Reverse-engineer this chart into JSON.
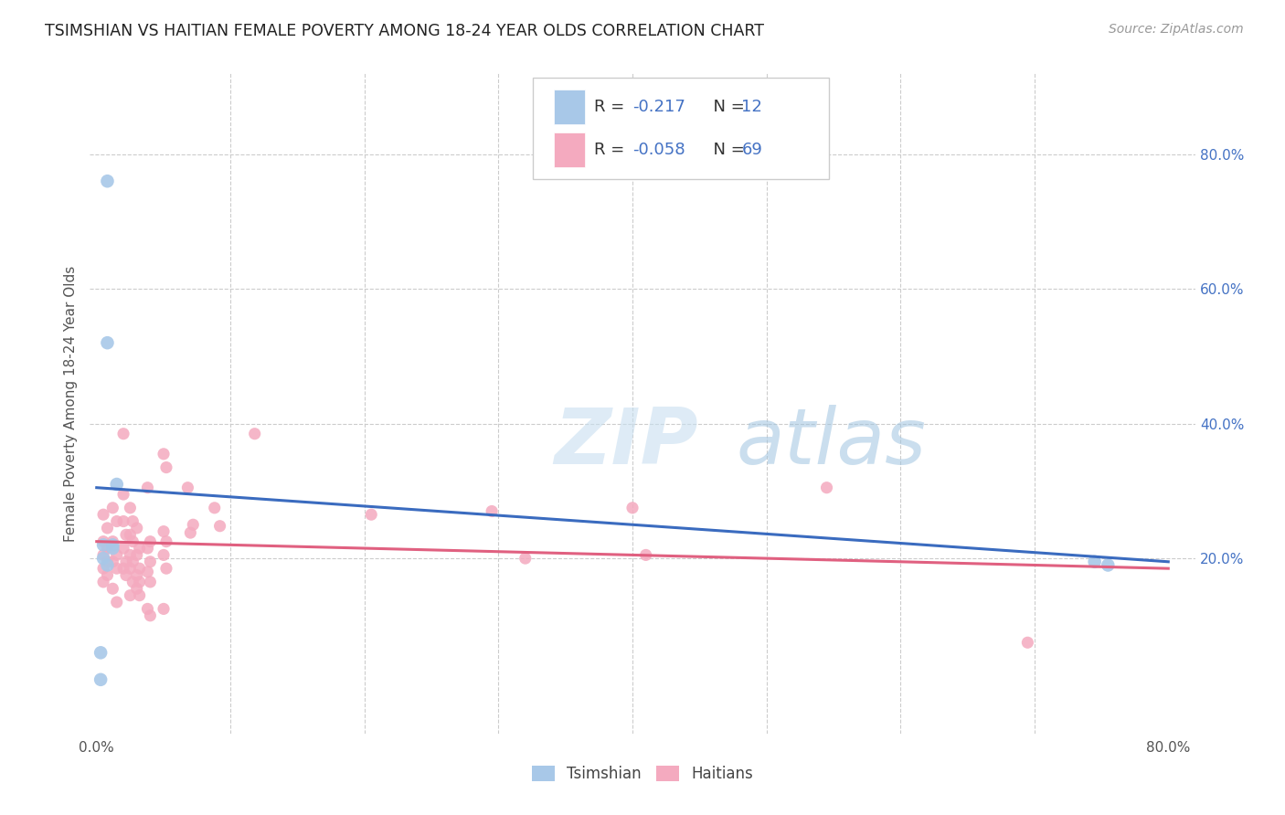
{
  "title": "TSIMSHIAN VS HAITIAN FEMALE POVERTY AMONG 18-24 YEAR OLDS CORRELATION CHART",
  "source": "Source: ZipAtlas.com",
  "ylabel": "Female Poverty Among 18-24 Year Olds",
  "right_yticks": [
    "80.0%",
    "60.0%",
    "40.0%",
    "20.0%"
  ],
  "right_ytick_vals": [
    0.8,
    0.6,
    0.4,
    0.2
  ],
  "xlim": [
    -0.005,
    0.82
  ],
  "ylim": [
    -0.06,
    0.92
  ],
  "tsimshian_R": -0.217,
  "tsimshian_N": 12,
  "haitian_R": -0.058,
  "haitian_N": 69,
  "tsimshian_color": "#a8c8e8",
  "haitian_color": "#f4aabf",
  "tsimshian_line_color": "#3a6bbf",
  "haitian_line_color": "#e06080",
  "grid_color": "#cccccc",
  "ts_line_y0": 0.305,
  "ts_line_y1": 0.195,
  "ha_line_y0": 0.225,
  "ha_line_y1": 0.185,
  "tsimshian_scatter": [
    [
      0.008,
      0.76
    ],
    [
      0.008,
      0.52
    ],
    [
      0.015,
      0.31
    ],
    [
      0.005,
      0.22
    ],
    [
      0.012,
      0.22
    ],
    [
      0.005,
      0.2
    ],
    [
      0.008,
      0.19
    ],
    [
      0.012,
      0.215
    ],
    [
      0.003,
      0.06
    ],
    [
      0.003,
      0.02
    ],
    [
      0.745,
      0.195
    ],
    [
      0.755,
      0.19
    ]
  ],
  "haitian_scatter": [
    [
      0.005,
      0.265
    ],
    [
      0.008,
      0.245
    ],
    [
      0.005,
      0.225
    ],
    [
      0.008,
      0.215
    ],
    [
      0.005,
      0.205
    ],
    [
      0.008,
      0.195
    ],
    [
      0.005,
      0.185
    ],
    [
      0.008,
      0.175
    ],
    [
      0.005,
      0.165
    ],
    [
      0.012,
      0.275
    ],
    [
      0.015,
      0.255
    ],
    [
      0.012,
      0.225
    ],
    [
      0.015,
      0.205
    ],
    [
      0.012,
      0.195
    ],
    [
      0.015,
      0.185
    ],
    [
      0.012,
      0.155
    ],
    [
      0.015,
      0.135
    ],
    [
      0.02,
      0.385
    ],
    [
      0.02,
      0.295
    ],
    [
      0.02,
      0.255
    ],
    [
      0.022,
      0.235
    ],
    [
      0.02,
      0.215
    ],
    [
      0.022,
      0.195
    ],
    [
      0.02,
      0.185
    ],
    [
      0.022,
      0.175
    ],
    [
      0.025,
      0.275
    ],
    [
      0.027,
      0.255
    ],
    [
      0.025,
      0.235
    ],
    [
      0.027,
      0.225
    ],
    [
      0.025,
      0.205
    ],
    [
      0.027,
      0.195
    ],
    [
      0.025,
      0.185
    ],
    [
      0.027,
      0.165
    ],
    [
      0.025,
      0.145
    ],
    [
      0.03,
      0.245
    ],
    [
      0.032,
      0.215
    ],
    [
      0.03,
      0.205
    ],
    [
      0.032,
      0.185
    ],
    [
      0.03,
      0.175
    ],
    [
      0.032,
      0.165
    ],
    [
      0.03,
      0.155
    ],
    [
      0.032,
      0.145
    ],
    [
      0.038,
      0.305
    ],
    [
      0.04,
      0.225
    ],
    [
      0.038,
      0.215
    ],
    [
      0.04,
      0.195
    ],
    [
      0.038,
      0.18
    ],
    [
      0.04,
      0.165
    ],
    [
      0.038,
      0.125
    ],
    [
      0.04,
      0.115
    ],
    [
      0.05,
      0.355
    ],
    [
      0.052,
      0.335
    ],
    [
      0.05,
      0.24
    ],
    [
      0.052,
      0.225
    ],
    [
      0.05,
      0.205
    ],
    [
      0.052,
      0.185
    ],
    [
      0.05,
      0.125
    ],
    [
      0.068,
      0.305
    ],
    [
      0.072,
      0.25
    ],
    [
      0.07,
      0.238
    ],
    [
      0.088,
      0.275
    ],
    [
      0.092,
      0.248
    ],
    [
      0.118,
      0.385
    ],
    [
      0.205,
      0.265
    ],
    [
      0.295,
      0.27
    ],
    [
      0.32,
      0.2
    ],
    [
      0.4,
      0.275
    ],
    [
      0.41,
      0.205
    ],
    [
      0.545,
      0.305
    ],
    [
      0.695,
      0.075
    ]
  ]
}
